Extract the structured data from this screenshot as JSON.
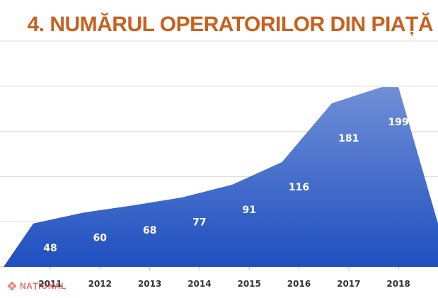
{
  "chart_data": {
    "type": "area",
    "title": "4. NUMĂRUL OPERATORILOR DIN PIAȚĂ",
    "categories": [
      "2011",
      "2012",
      "2013",
      "2014",
      "2015",
      "2016",
      "2017",
      "2018"
    ],
    "values": [
      48,
      60,
      68,
      77,
      91,
      116,
      181,
      199
    ],
    "ylim": [
      0,
      250
    ],
    "grid": true,
    "legend": "none",
    "colors": {
      "fill_top": "#6f8fd6",
      "fill_bottom": "#1f4fc0",
      "title": "#c8611f"
    }
  },
  "watermark": {
    "text": "NAȚIONAL"
  }
}
